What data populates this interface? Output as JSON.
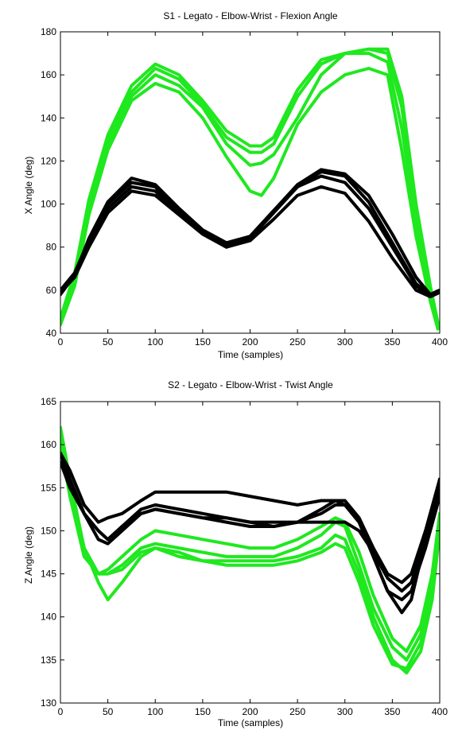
{
  "colors": {
    "green": "#1fe81f",
    "black": "#000000",
    "axes": "#000000",
    "background": "#ffffff"
  },
  "chart_data": [
    {
      "type": "line",
      "title": "S1 - Legato - Elbow-Wrist - Flexion Angle",
      "xlabel": "Time (samples)",
      "ylabel": "X Angle (deg)",
      "xlim": [
        0,
        400
      ],
      "ylim": [
        40,
        180
      ],
      "xticks": [
        "0",
        "50",
        "100",
        "150",
        "200",
        "250",
        "300",
        "350",
        "400"
      ],
      "yticks": [
        "40",
        "60",
        "80",
        "100",
        "120",
        "140",
        "160",
        "180"
      ],
      "grid": false,
      "series": [
        {
          "color": "green",
          "x": [
            0,
            15,
            30,
            50,
            75,
            100,
            125,
            150,
            175,
            200,
            212,
            225,
            250,
            275,
            300,
            325,
            345,
            360,
            375,
            390,
            398
          ],
          "y": [
            44,
            62,
            95,
            125,
            148,
            156,
            152,
            140,
            122,
            106,
            104,
            112,
            137,
            152,
            160,
            163,
            160,
            125,
            85,
            55,
            42
          ]
        },
        {
          "color": "green",
          "x": [
            0,
            15,
            30,
            50,
            75,
            100,
            125,
            150,
            175,
            200,
            212,
            225,
            250,
            275,
            300,
            325,
            345,
            360,
            375,
            390,
            398
          ],
          "y": [
            46,
            64,
            98,
            128,
            150,
            160,
            155,
            145,
            128,
            118,
            119,
            123,
            140,
            160,
            170,
            172,
            170,
            145,
            95,
            60,
            44
          ]
        },
        {
          "color": "green",
          "x": [
            0,
            15,
            30,
            50,
            75,
            100,
            125,
            150,
            175,
            200,
            212,
            225,
            250,
            275,
            300,
            325,
            345,
            360,
            375,
            390,
            398
          ],
          "y": [
            45,
            66,
            100,
            130,
            152,
            163,
            158,
            146,
            131,
            124,
            124,
            128,
            150,
            165,
            170,
            170,
            166,
            135,
            92,
            58,
            43
          ]
        },
        {
          "color": "green",
          "x": [
            0,
            15,
            30,
            50,
            75,
            100,
            125,
            150,
            175,
            200,
            212,
            225,
            250,
            275,
            300,
            325,
            345,
            360,
            375,
            390,
            398
          ],
          "y": [
            47,
            68,
            102,
            132,
            155,
            165,
            160,
            148,
            134,
            127,
            127,
            131,
            153,
            167,
            170,
            172,
            172,
            150,
            100,
            62,
            45
          ]
        },
        {
          "color": "black",
          "x": [
            0,
            15,
            30,
            50,
            75,
            100,
            125,
            150,
            175,
            200,
            225,
            250,
            275,
            300,
            325,
            350,
            375,
            390,
            400
          ],
          "y": [
            59,
            66,
            80,
            96,
            106,
            104,
            95,
            86,
            80,
            83,
            93,
            104,
            108,
            105,
            92,
            75,
            60,
            57,
            59
          ]
        },
        {
          "color": "black",
          "x": [
            0,
            15,
            30,
            50,
            75,
            100,
            125,
            150,
            175,
            200,
            225,
            250,
            275,
            300,
            325,
            350,
            375,
            390,
            400
          ],
          "y": [
            60,
            67,
            82,
            98,
            108,
            106,
            96,
            87,
            81,
            85,
            97,
            108,
            113,
            110,
            98,
            80,
            62,
            57,
            59
          ]
        },
        {
          "color": "black",
          "x": [
            0,
            15,
            30,
            50,
            75,
            100,
            125,
            150,
            175,
            200,
            225,
            250,
            275,
            300,
            325,
            350,
            375,
            390,
            400
          ],
          "y": [
            60,
            68,
            83,
            100,
            110,
            108,
            97,
            87,
            80,
            84,
            96,
            108,
            115,
            113,
            101,
            82,
            63,
            58,
            60
          ]
        },
        {
          "color": "black",
          "x": [
            0,
            15,
            30,
            50,
            75,
            100,
            125,
            150,
            175,
            200,
            225,
            250,
            275,
            300,
            325,
            350,
            375,
            390,
            400
          ],
          "y": [
            58,
            67,
            84,
            101,
            112,
            109,
            98,
            88,
            82,
            85,
            97,
            109,
            116,
            114,
            104,
            86,
            66,
            58,
            60
          ]
        }
      ]
    },
    {
      "type": "line",
      "title": "S2 - Legato - Elbow-Wrist - Twist Angle",
      "xlabel": "Time (samples)",
      "ylabel": "Z Angle (deg)",
      "xlim": [
        0,
        400
      ],
      "ylim": [
        130,
        165
      ],
      "xticks": [
        "0",
        "50",
        "100",
        "150",
        "200",
        "250",
        "300",
        "350",
        "400"
      ],
      "yticks": [
        "130",
        "135",
        "140",
        "145",
        "150",
        "155",
        "160",
        "165"
      ],
      "grid": false,
      "series": [
        {
          "color": "green",
          "x": [
            0,
            10,
            25,
            40,
            50,
            65,
            85,
            100,
            125,
            150,
            175,
            200,
            225,
            250,
            275,
            290,
            300,
            315,
            330,
            350,
            365,
            380,
            392,
            400
          ],
          "y": [
            162,
            156,
            148,
            144,
            142,
            144,
            147,
            148,
            147.5,
            146.5,
            146.5,
            146.5,
            146.5,
            147,
            148,
            149.5,
            149,
            145,
            140,
            135,
            133.5,
            136,
            142,
            150
          ]
        },
        {
          "color": "green",
          "x": [
            0,
            10,
            25,
            40,
            50,
            65,
            85,
            100,
            125,
            150,
            175,
            200,
            225,
            250,
            275,
            290,
            300,
            315,
            330,
            350,
            365,
            380,
            392,
            400
          ],
          "y": [
            161,
            155,
            148,
            145,
            145,
            146,
            148,
            148.5,
            148,
            147.5,
            147,
            147,
            147,
            148,
            149.5,
            151,
            150.5,
            146,
            141,
            136.5,
            135,
            138,
            144,
            151
          ]
        },
        {
          "color": "green",
          "x": [
            0,
            10,
            25,
            40,
            50,
            65,
            85,
            100,
            125,
            150,
            175,
            200,
            225,
            250,
            275,
            290,
            300,
            315,
            330,
            350,
            365,
            380,
            392,
            400
          ],
          "y": [
            160,
            154,
            147,
            145,
            145.5,
            147,
            149,
            150,
            149.5,
            149,
            148.5,
            148,
            148,
            149,
            150.5,
            151.5,
            151,
            147.5,
            142.5,
            137.5,
            136,
            139,
            145,
            152
          ]
        },
        {
          "color": "green",
          "x": [
            0,
            10,
            25,
            40,
            50,
            65,
            85,
            100,
            125,
            150,
            175,
            200,
            225,
            250,
            275,
            290,
            300,
            315,
            330,
            350,
            365,
            380,
            392,
            400
          ],
          "y": [
            161,
            155,
            148,
            145,
            145,
            145.5,
            147.5,
            148,
            147,
            146.5,
            146,
            146,
            146,
            146.5,
            147.5,
            148.5,
            148,
            144,
            139,
            134.5,
            134,
            137,
            143,
            150
          ]
        },
        {
          "color": "black",
          "x": [
            0,
            10,
            25,
            40,
            50,
            65,
            85,
            100,
            125,
            150,
            175,
            200,
            225,
            250,
            275,
            290,
            300,
            315,
            330,
            345,
            360,
            370,
            385,
            400
          ],
          "y": [
            159,
            156,
            152,
            149,
            148.5,
            150,
            152,
            152.5,
            152,
            151.5,
            151.5,
            151,
            151,
            151,
            151,
            151,
            151,
            150,
            147.5,
            144.5,
            143,
            144,
            149,
            155
          ]
        },
        {
          "color": "black",
          "x": [
            0,
            10,
            25,
            40,
            50,
            65,
            85,
            100,
            125,
            150,
            175,
            200,
            225,
            250,
            275,
            290,
            300,
            315,
            330,
            345,
            360,
            370,
            385,
            400
          ],
          "y": [
            158,
            155,
            152,
            150,
            149,
            150.5,
            152.5,
            153,
            152.5,
            152,
            151.5,
            151,
            150.5,
            151,
            152,
            153,
            153,
            151,
            147,
            143,
            142,
            143,
            148,
            154
          ]
        },
        {
          "color": "black",
          "x": [
            0,
            10,
            25,
            40,
            50,
            65,
            85,
            100,
            125,
            150,
            175,
            200,
            225,
            250,
            275,
            290,
            300,
            315,
            330,
            345,
            360,
            370,
            385,
            400
          ],
          "y": [
            159,
            157,
            153,
            151,
            151.5,
            152,
            153.5,
            154.5,
            154.5,
            154.5,
            154.5,
            154,
            153.5,
            153,
            153.5,
            153.5,
            153,
            151,
            147,
            143,
            140.5,
            142,
            149,
            156
          ]
        },
        {
          "color": "black",
          "x": [
            0,
            10,
            25,
            40,
            50,
            65,
            85,
            100,
            125,
            150,
            175,
            200,
            225,
            250,
            275,
            290,
            300,
            315,
            330,
            345,
            360,
            370,
            385,
            400
          ],
          "y": [
            158,
            156,
            152,
            150,
            149,
            150.5,
            152,
            152.5,
            152,
            151.5,
            151,
            150.5,
            150.5,
            151,
            152.5,
            153.5,
            153.5,
            151.5,
            148,
            145,
            144,
            145,
            150,
            156
          ]
        }
      ]
    }
  ]
}
